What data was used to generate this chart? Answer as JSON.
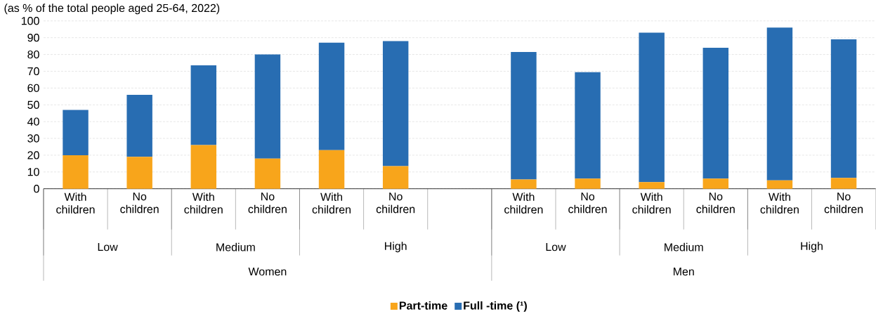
{
  "chart_data": {
    "type": "bar",
    "subtitle": "(as % of the total people aged 25-64, 2022)",
    "categories": [
      "With children",
      "No children",
      "With children",
      "No children",
      "With children",
      "No children",
      null,
      "With children",
      "No children",
      "With children",
      "No children",
      "With children",
      "No children"
    ],
    "series": [
      {
        "name": "Part-time",
        "color": "#f8a51b",
        "values": [
          20,
          19,
          26,
          18,
          23,
          13.5,
          null,
          5.5,
          6,
          4,
          6,
          5,
          6.5
        ]
      },
      {
        "name": "Full -time (¹)",
        "color": "#286db2",
        "values": [
          27,
          37,
          47.5,
          62,
          64,
          74.5,
          null,
          76,
          63.5,
          89,
          78,
          91,
          82.5
        ]
      }
    ],
    "stacked": true,
    "ylim": [
      0,
      100
    ],
    "yticks": [
      0,
      10,
      20,
      30,
      40,
      50,
      60,
      70,
      80,
      90,
      100
    ],
    "grid": "y",
    "legend": "bottom",
    "annotations": [
      "Low",
      "Medium",
      "High",
      "Low",
      "Medium",
      "High",
      "Women",
      "Men"
    ]
  }
}
